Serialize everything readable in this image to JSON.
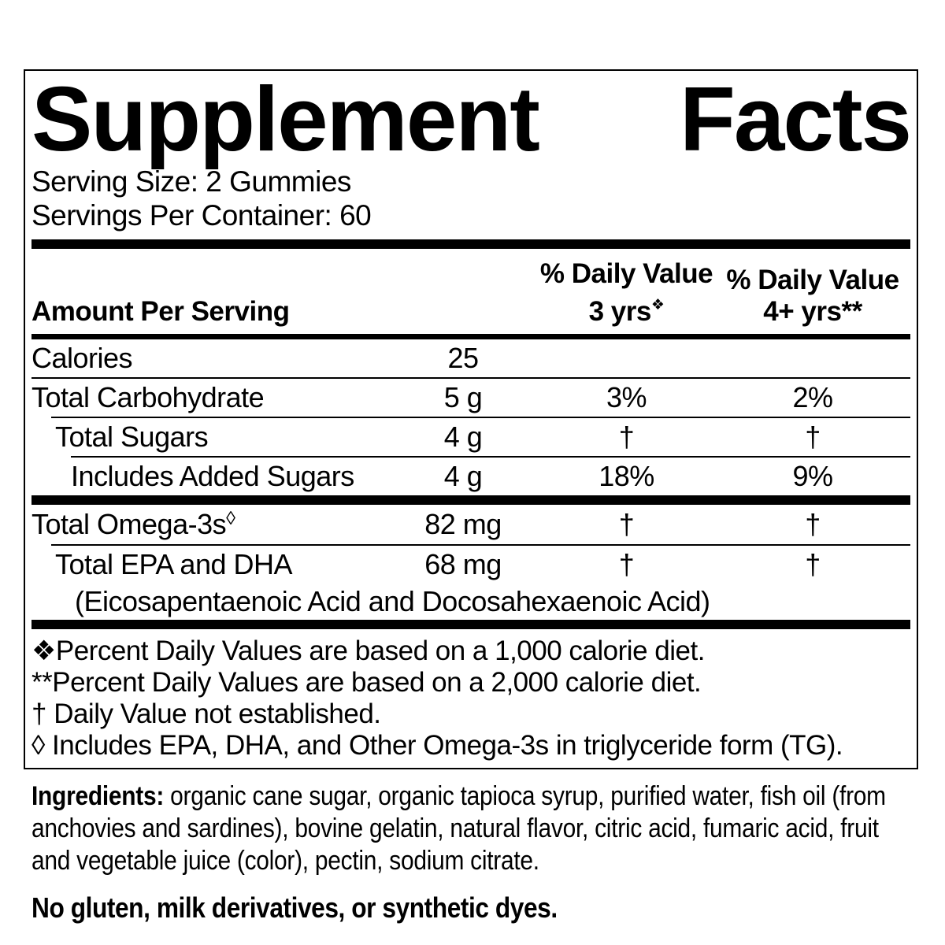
{
  "panel": {
    "title": "Supplement Facts",
    "serving_size": "Serving Size: 2 Gummies",
    "servings_per_container": "Servings Per Container: 60",
    "columns": {
      "amount": "Amount Per Serving",
      "dv3_line1": "% Daily Value",
      "dv3_line2": "3 yrs",
      "dv3_symbol": "❖",
      "dv4_line1": "% Daily Value",
      "dv4_line2": "4+ yrs**"
    },
    "rows": [
      {
        "name": "Calories",
        "amount": "25",
        "dv_3yrs": "",
        "dv_4plus": ""
      },
      {
        "name": "Total Carbohydrate",
        "amount": "5 g",
        "dv_3yrs": "3%",
        "dv_4plus": "2%"
      },
      {
        "name": "Total Sugars",
        "amount": "4 g",
        "dv_3yrs": "†",
        "dv_4plus": "†"
      },
      {
        "name": "Includes Added Sugars",
        "amount": "4 g",
        "dv_3yrs": "18%",
        "dv_4plus": "9%"
      },
      {
        "name": "Total Omega-3s",
        "name_symbol": "◊",
        "amount": "82 mg",
        "dv_3yrs": "†",
        "dv_4plus": "†"
      },
      {
        "name": "Total EPA and DHA",
        "amount": "68 mg",
        "dv_3yrs": "†",
        "dv_4plus": "†",
        "subtext": "(Eicosapentaenoic Acid and Docosahexaenoic Acid)"
      }
    ],
    "footnotes": [
      "❖Percent Daily Values are based on a 1,000 calorie diet.",
      "**Percent Daily Values are based on a 2,000 calorie diet.",
      "† Daily Value not established.",
      "◊ Includes EPA, DHA, and Other Omega-3s in triglyceride form (TG)."
    ]
  },
  "ingredients": {
    "label": "Ingredients:",
    "text": "organic cane sugar, organic tapioca syrup, purified water, fish oil (from anchovies and sardines), bovine gelatin, natural flavor, citric acid, fumaric acid, fruit and vegetable juice (color), pectin, sodium citrate."
  },
  "allergen_statement": "No gluten, milk derivatives, or synthetic dyes.",
  "colors": {
    "text": "#000000",
    "background": "#ffffff"
  }
}
